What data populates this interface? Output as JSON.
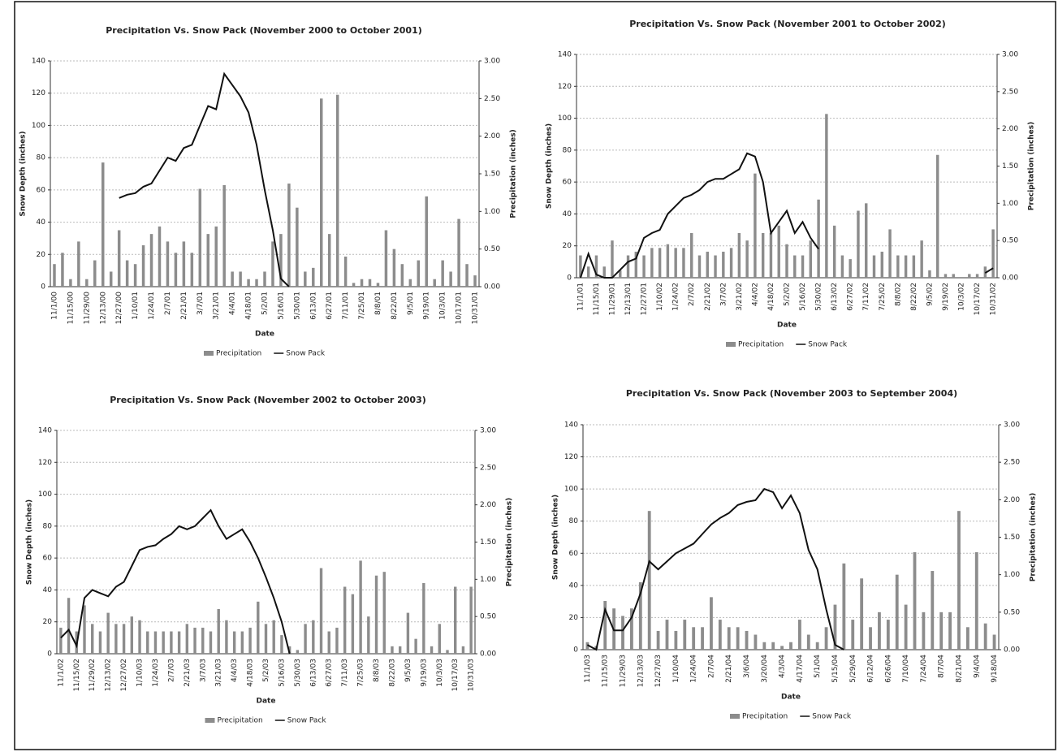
{
  "chart_data": [
    {
      "type": "combo",
      "title": "Precipitation Vs. Snow Pack (November 2000 to October 2001)",
      "x_label": "Date",
      "y_label": "Snow Depth (inches)",
      "y2_label": "Precipitation (inches)",
      "categories": [
        "11/1/00",
        null,
        "11/15/00",
        null,
        "11/29/00",
        null,
        "12/13/00",
        null,
        "12/27/00",
        null,
        "1/10/01",
        null,
        "1/24/01",
        null,
        "2/7/01",
        null,
        "2/21/01",
        null,
        "3/7/01",
        null,
        "3/21/01",
        null,
        "4/4/01",
        null,
        "4/18/01",
        null,
        "5/2/01",
        null,
        "5/16/01",
        null,
        "5/30/01",
        null,
        "6/13/01",
        null,
        "6/27/01",
        null,
        "7/11/01",
        null,
        "7/25/01",
        null,
        "8/8/01",
        null,
        "8/22/01",
        null,
        "9/5/01",
        null,
        "9/19/01",
        null,
        "10/3/01",
        null,
        "10/17/01",
        null,
        "10/31/01"
      ],
      "series": [
        {
          "name": "Precipitation",
          "type": "bar",
          "axis": "y2",
          "color": "#8c8c8c",
          "values": [
            0.3,
            0.45,
            0.1,
            0.6,
            0.1,
            0.35,
            1.65,
            0.2,
            0.75,
            0.35,
            0.3,
            0.55,
            0.7,
            0.8,
            0.6,
            0.45,
            0.6,
            0.45,
            1.3,
            0.7,
            0.8,
            1.35,
            0.2,
            0.2,
            0.1,
            0.1,
            0.2,
            0.6,
            0.7,
            1.37,
            1.05,
            0.2,
            0.25,
            2.5,
            0.7,
            2.55,
            0.4,
            0.05,
            0.1,
            0.1,
            0.05,
            0.75,
            0.5,
            0.3,
            0.1,
            0.35,
            1.2,
            0.1,
            0.35,
            0.2,
            0.9,
            0.3,
            0.15
          ]
        },
        {
          "name": "Snow Pack",
          "type": "line",
          "color": "#111111",
          "values": [
            null,
            null,
            null,
            null,
            null,
            null,
            null,
            null,
            55,
            57,
            58,
            62,
            64,
            72,
            80,
            78,
            86,
            88,
            100,
            112,
            110,
            132,
            125,
            118,
            108,
            88,
            60,
            35,
            5,
            0,
            null,
            null,
            null,
            null,
            null,
            null,
            null,
            null,
            null,
            null,
            null,
            null,
            null,
            null,
            null,
            null,
            null,
            null,
            null,
            null,
            null,
            null,
            null
          ]
        }
      ],
      "ylim": [
        0,
        140
      ],
      "yticks": [
        0,
        20,
        40,
        60,
        80,
        100,
        120,
        140
      ],
      "y2lim": [
        0,
        3
      ],
      "y2ticks": [
        {
          "value": 0,
          "label": "0.00"
        },
        {
          "value": 0.5,
          "label": "0.50"
        },
        {
          "value": 1,
          "label": "1.00"
        },
        {
          "value": 1.5,
          "label": "1.50"
        },
        {
          "value": 2,
          "label": "2.00"
        },
        {
          "value": 2.5,
          "label": "2.50"
        },
        {
          "value": 3,
          "label": "3.00"
        }
      ],
      "grid": true
    },
    {
      "type": "combo",
      "title": "Precipitation Vs. Snow Pack (November 2001 to October 2002)",
      "x_label": "Date",
      "y_label": "Snow Depth (inches)",
      "y2_label": "Precipitation (inches)",
      "categories": [
        "11/1/01",
        null,
        "11/15/01",
        null,
        "11/29/01",
        null,
        "12/13/01",
        null,
        "12/27/01",
        null,
        "1/10/02",
        null,
        "1/24/02",
        null,
        "2/7/02",
        null,
        "2/21/02",
        null,
        "3/7/02",
        null,
        "3/21/02",
        null,
        "4/4/02",
        null,
        "4/18/02",
        null,
        "5/2/02",
        null,
        "5/16/02",
        null,
        "5/30/02",
        null,
        "6/13/02",
        null,
        "6/27/02",
        null,
        "7/11/02",
        null,
        "7/25/02",
        null,
        "8/8/02",
        null,
        "8/22/02",
        null,
        "9/5/02",
        null,
        "9/19/02",
        null,
        "10/3/02",
        null,
        "10/17/02",
        null,
        "10/31/02"
      ],
      "series": [
        {
          "name": "Precipitation",
          "type": "bar",
          "axis": "y2",
          "color": "#8c8c8c",
          "values": [
            0.3,
            0.15,
            0.3,
            0.15,
            0.5,
            0.1,
            0.3,
            0.35,
            0.3,
            0.4,
            0.4,
            0.45,
            0.4,
            0.4,
            0.6,
            0.3,
            0.35,
            0.3,
            0.35,
            0.4,
            0.6,
            0.5,
            1.4,
            0.6,
            0.6,
            0.7,
            0.45,
            0.3,
            0.3,
            0.5,
            1.05,
            2.2,
            0.7,
            0.3,
            0.25,
            0.9,
            1.0,
            0.3,
            0.35,
            0.65,
            0.3,
            0.3,
            0.3,
            0.5,
            0.1,
            1.65,
            0.05,
            0.05,
            0,
            0.05,
            0.05,
            0.15,
            0.65
          ]
        },
        {
          "name": "Snow Pack",
          "type": "line",
          "color": "#111111",
          "values": [
            0,
            15,
            2,
            0,
            0,
            5,
            10,
            12,
            25,
            28,
            30,
            40,
            45,
            50,
            52,
            55,
            60,
            62,
            62,
            65,
            68,
            78,
            76,
            60,
            28,
            35,
            42,
            28,
            35,
            25,
            18,
            null,
            null,
            null,
            null,
            null,
            null,
            null,
            null,
            null,
            null,
            null,
            null,
            null,
            null,
            null,
            null,
            null,
            null,
            null,
            null,
            3,
            6
          ]
        }
      ],
      "ylim": [
        0,
        140
      ],
      "yticks": [
        0,
        20,
        40,
        60,
        80,
        100,
        120,
        140
      ],
      "y2lim": [
        0,
        3
      ],
      "y2ticks": [
        {
          "value": 0,
          "label": "0.00"
        },
        {
          "value": 0.5,
          "label": "0.50"
        },
        {
          "value": 1,
          "label": "1.00"
        },
        {
          "value": 1.5,
          "label": "1.50"
        },
        {
          "value": 2,
          "label": "2.00"
        },
        {
          "value": 2.5,
          "label": "2.50"
        },
        {
          "value": 3,
          "label": "3.00"
        }
      ],
      "grid": true
    },
    {
      "type": "combo",
      "title": "Precipitation Vs. Snow Pack (November 2002 to October 2003)",
      "x_label": "Date",
      "y_label": "Snow Depth (inches)",
      "y2_label": "Precipitation (inches)",
      "categories": [
        "11/1/02",
        null,
        "11/15/02",
        null,
        "11/29/02",
        null,
        "12/13/02",
        null,
        "12/27/02",
        null,
        "1/10/03",
        null,
        "1/24/03",
        null,
        "2/7/03",
        null,
        "2/21/03",
        null,
        "3/7/03",
        null,
        "3/21/03",
        null,
        "4/4/03",
        null,
        "4/18/03",
        null,
        "5/2/03",
        null,
        "5/16/03",
        null,
        "5/30/03",
        null,
        "6/13/03",
        null,
        "6/27/03",
        null,
        "7/11/03",
        null,
        "7/25/03",
        null,
        "8/8/03",
        null,
        "8/22/03",
        null,
        "9/5/03",
        null,
        "9/19/03",
        null,
        "10/3/03",
        null,
        "10/17/03",
        null,
        "10/31/03"
      ],
      "series": [
        {
          "name": "Precipitation",
          "type": "bar",
          "axis": "y2",
          "color": "#8c8c8c",
          "values": [
            0.35,
            0.75,
            0.3,
            0.65,
            0.4,
            0.3,
            0.55,
            0.4,
            0.4,
            0.5,
            0.45,
            0.3,
            0.3,
            0.3,
            0.3,
            0.3,
            0.4,
            0.35,
            0.35,
            0.3,
            0.6,
            0.45,
            0.3,
            0.3,
            0.35,
            0.7,
            0.4,
            0.45,
            0.25,
            0.1,
            0.05,
            0.4,
            0.45,
            1.15,
            0.3,
            0.35,
            0.9,
            0.8,
            1.25,
            0.5,
            1.05,
            1.1,
            0.1,
            0.1,
            0.55,
            0.2,
            0.95,
            0.1,
            0.4,
            0.05,
            0.9,
            0.1,
            0.9
          ]
        },
        {
          "name": "Snow Pack",
          "type": "line",
          "color": "#111111",
          "values": [
            10,
            15,
            5,
            35,
            40,
            38,
            36,
            42,
            45,
            55,
            65,
            67,
            68,
            72,
            75,
            80,
            78,
            80,
            85,
            90,
            80,
            72,
            75,
            78,
            70,
            60,
            48,
            35,
            20,
            0,
            null,
            null,
            null,
            null,
            null,
            null,
            null,
            null,
            null,
            null,
            null,
            null,
            null,
            null,
            null,
            null,
            null,
            null,
            null,
            null,
            null,
            null,
            null
          ]
        }
      ],
      "ylim": [
        0,
        140
      ],
      "yticks": [
        0,
        20,
        40,
        60,
        80,
        100,
        120,
        140
      ],
      "y2lim": [
        0,
        3
      ],
      "y2ticks": [
        {
          "value": 0,
          "label": "0.00"
        },
        {
          "value": 0.5,
          "label": "0.50"
        },
        {
          "value": 1,
          "label": "1.00"
        },
        {
          "value": 1.5,
          "label": "1.50"
        },
        {
          "value": 2,
          "label": "2.00"
        },
        {
          "value": 2.5,
          "label": "2.50"
        },
        {
          "value": 3,
          "label": "3.00"
        }
      ],
      "grid": true
    },
    {
      "type": "combo",
      "title": "Precipitation Vs. Snow Pack (November 2003 to September 2004)",
      "x_label": "Date",
      "y_label": "Snow Depth (inches)",
      "y2_label": "Precipitation (inches)",
      "categories": [
        "11/1/03",
        null,
        "11/15/03",
        null,
        "11/29/03",
        null,
        "12/13/03",
        null,
        "12/27/03",
        null,
        "1/10/04",
        null,
        "1/24/04",
        null,
        "2/7/04",
        null,
        "2/21/04",
        null,
        "3/6/04",
        null,
        "3/20/04",
        null,
        "4/3/04",
        null,
        "4/17/04",
        null,
        "5/1/04",
        null,
        "5/15/04",
        null,
        "5/29/04",
        null,
        "6/12/04",
        null,
        "6/26/04",
        null,
        "7/10/04",
        null,
        "7/24/04",
        null,
        "8/7/04",
        null,
        "8/21/04",
        null,
        "9/4/04",
        null,
        "9/18/04"
      ],
      "series": [
        {
          "name": "Precipitation",
          "type": "bar",
          "axis": "y2",
          "color": "#8c8c8c",
          "values": [
            0.1,
            0.05,
            0.65,
            0.55,
            0.45,
            0.55,
            0.9,
            1.85,
            0.25,
            0.4,
            0.25,
            0.4,
            0.3,
            0.3,
            0.7,
            0.4,
            0.3,
            0.3,
            0.25,
            0.2,
            0.1,
            0.1,
            0.05,
            0.1,
            0.4,
            0.2,
            0.1,
            0.3,
            0.6,
            1.15,
            0.4,
            0.95,
            0.3,
            0.5,
            0.4,
            1.0,
            0.6,
            1.3,
            0.5,
            1.05,
            0.5,
            0.5,
            1.85,
            0.3,
            1.3,
            0.35,
            0.2
          ]
        },
        {
          "name": "Snow Pack",
          "type": "line",
          "color": "#111111",
          "values": [
            3,
            0,
            25,
            12,
            12,
            20,
            35,
            55,
            50,
            55,
            60,
            63,
            66,
            72,
            78,
            82,
            85,
            90,
            92,
            93,
            100,
            98,
            88,
            96,
            85,
            62,
            50,
            25,
            3,
            0,
            null,
            null,
            null,
            null,
            null,
            null,
            null,
            null,
            null,
            null,
            null,
            null,
            null,
            null,
            null,
            null,
            null
          ]
        }
      ],
      "ylim": [
        0,
        140
      ],
      "yticks": [
        0,
        20,
        40,
        60,
        80,
        100,
        120,
        140
      ],
      "y2lim": [
        0,
        3
      ],
      "y2ticks": [
        {
          "value": 0,
          "label": "0.00"
        },
        {
          "value": 0.5,
          "label": "0.50"
        },
        {
          "value": 1,
          "label": "1.00"
        },
        {
          "value": 1.5,
          "label": "1.50"
        },
        {
          "value": 2,
          "label": "2.00"
        },
        {
          "value": 2.5,
          "label": "2.50"
        },
        {
          "value": 3,
          "label": "3.00"
        }
      ],
      "grid": true
    }
  ]
}
